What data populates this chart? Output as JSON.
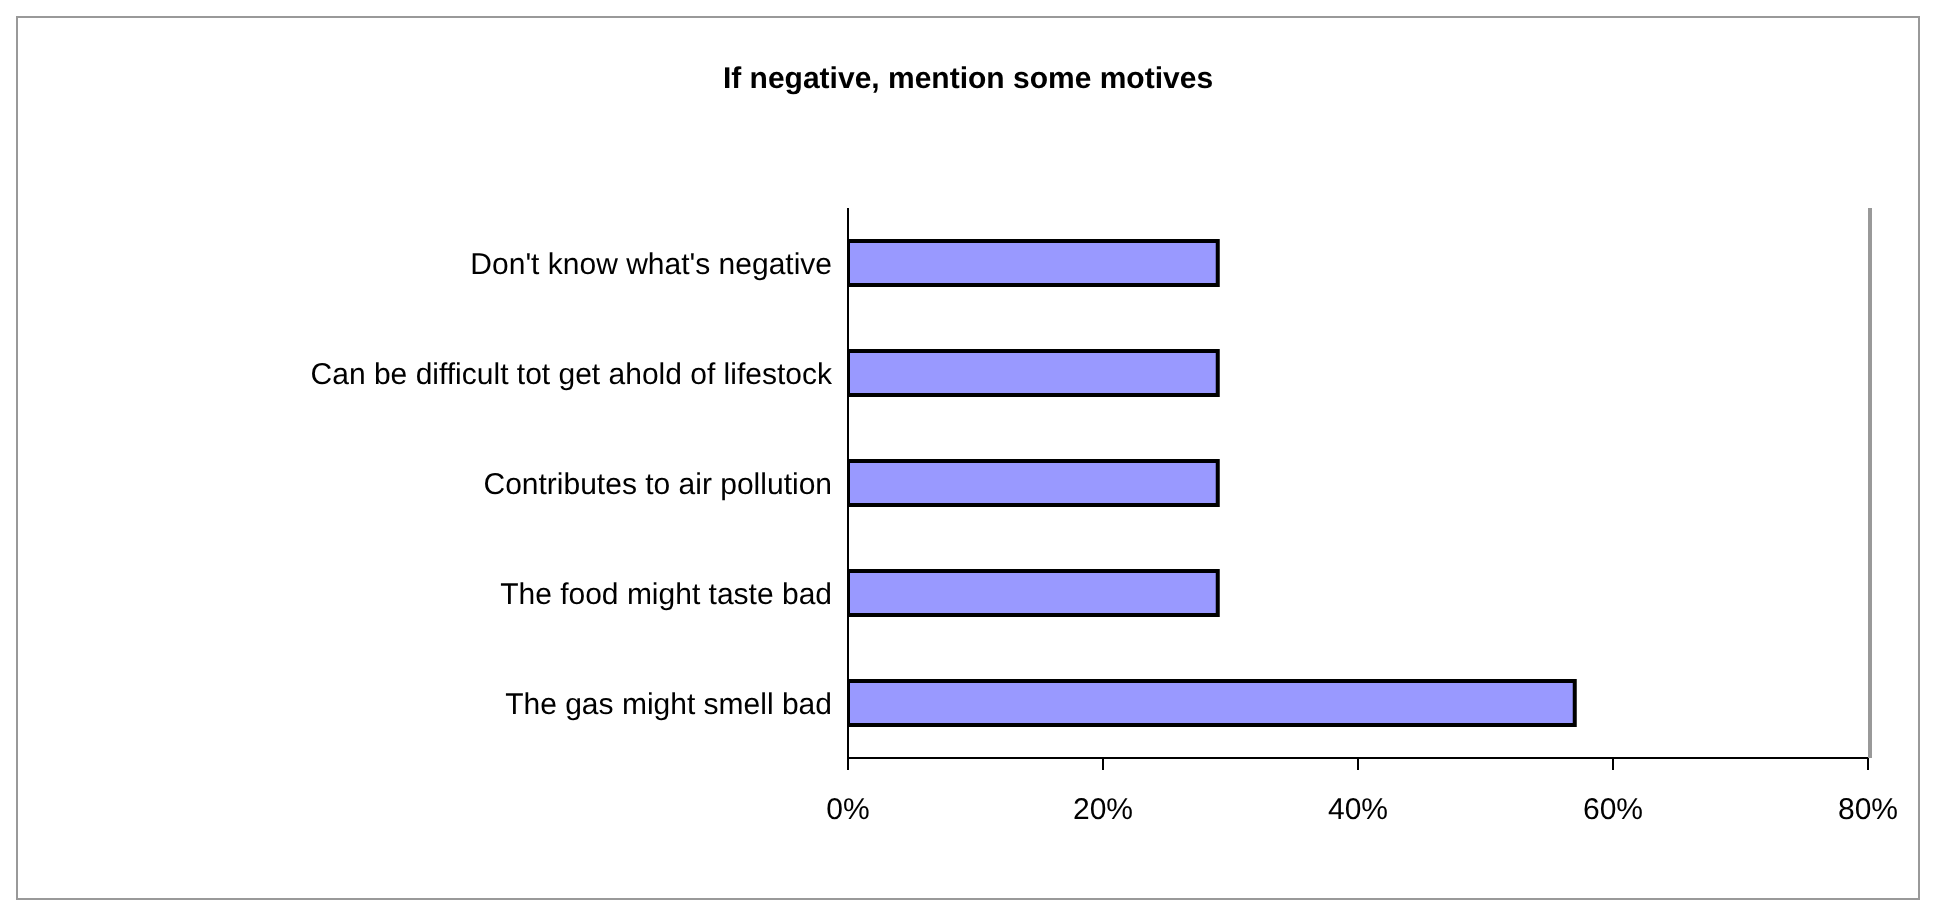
{
  "chart_data": {
    "type": "bar",
    "orientation": "horizontal",
    "title": "If negative, mention some motives",
    "categories": [
      "Don't know what's negative",
      "Can be difficult tot get ahold of lifestock",
      "Contributes to air pollution",
      "The food might taste bad",
      "The gas might smell bad"
    ],
    "values": [
      29,
      29,
      29,
      29,
      57
    ],
    "color": "#9999ff",
    "xlim": [
      0,
      80
    ],
    "xticks": [
      {
        "value": 0,
        "label": "0%"
      },
      {
        "value": 20,
        "label": "20%"
      },
      {
        "value": 40,
        "label": "40%"
      },
      {
        "value": 60,
        "label": "60%"
      },
      {
        "value": 80,
        "label": "80%"
      }
    ],
    "grid": false,
    "legend": false
  }
}
